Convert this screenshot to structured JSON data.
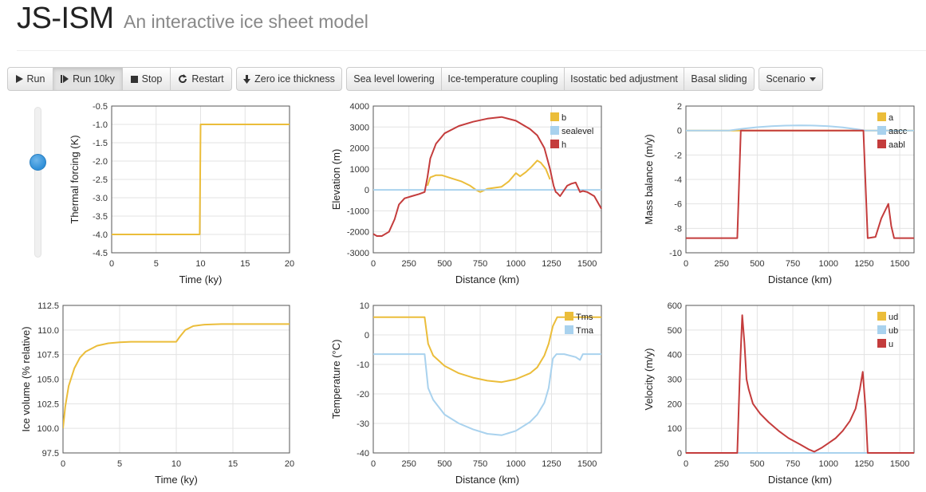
{
  "header": {
    "title": "JS-ISM",
    "subtitle": "An interactive ice sheet model"
  },
  "toolbar": {
    "run": "Run",
    "run10": "Run 10ky",
    "stop": "Stop",
    "restart": "Restart",
    "zero": "Zero ice thickness",
    "sealevel": "Sea level lowering",
    "icetemp": "Ice-temperature coupling",
    "isostatic": "Isostatic bed adjustment",
    "basal": "Basal sliding",
    "scenario": "Scenario"
  },
  "slider": {
    "level": 0.65
  },
  "colors": {
    "yellow": "#ebbd3a",
    "blue": "#a9d2ee",
    "red": "#c43c3c"
  },
  "chart_data": [
    {
      "type": "line",
      "id": "forcing",
      "xlabel": "Time (ky)",
      "ylabel": "Thermal forcing (K)",
      "xlim": [
        0,
        20
      ],
      "ylim": [
        -4.5,
        -0.5
      ],
      "xticks": [
        0,
        5,
        10,
        15,
        20
      ],
      "yticks": [
        -4.5,
        -4.0,
        -3.5,
        -3.0,
        -2.5,
        -2.0,
        -1.5,
        -1.0,
        -0.5
      ],
      "ytick_labels": [
        "-4.5",
        "-4.0",
        "-3.5",
        "-3.0",
        "-2.5",
        "-2.0",
        "-1.5",
        "-1.0",
        "-0.5"
      ],
      "series": [
        {
          "color": "yellow",
          "x": [
            0,
            9.9,
            10,
            20
          ],
          "y": [
            -4.0,
            -4.0,
            -1.0,
            -1.0
          ]
        }
      ]
    },
    {
      "type": "line",
      "id": "elevation",
      "xlabel": "Distance (km)",
      "ylabel": "Elevation (m)",
      "xlim": [
        0,
        1600
      ],
      "ylim": [
        -3000,
        4000
      ],
      "xticks": [
        0,
        250,
        500,
        750,
        1000,
        1250,
        1500
      ],
      "yticks": [
        -3000,
        -2000,
        -1000,
        0,
        1000,
        2000,
        3000,
        4000
      ],
      "legend": [
        "b",
        "sealevel",
        "h"
      ],
      "series": [
        {
          "name": "b",
          "color": "yellow",
          "x": [
            380,
            400,
            440,
            480,
            550,
            620,
            680,
            720,
            750,
            800,
            850,
            900,
            950,
            1000,
            1030,
            1070,
            1110,
            1150,
            1175,
            1210,
            1240
          ],
          "y": [
            200,
            600,
            700,
            700,
            550,
            400,
            200,
            0,
            -100,
            50,
            100,
            150,
            400,
            800,
            650,
            850,
            1100,
            1400,
            1300,
            1000,
            500
          ]
        },
        {
          "name": "sealevel",
          "color": "blue",
          "x": [
            0,
            1600
          ],
          "y": [
            0,
            0
          ]
        },
        {
          "name": "h",
          "color": "red",
          "x": [
            0,
            25,
            60,
            110,
            150,
            180,
            220,
            270,
            320,
            360,
            380,
            400,
            440,
            500,
            600,
            700,
            800,
            900,
            1000,
            1100,
            1150,
            1200,
            1240,
            1265,
            1280,
            1290,
            1310,
            1360,
            1390,
            1420,
            1450,
            1470,
            1500,
            1550,
            1600
          ],
          "y": [
            -2100,
            -2200,
            -2200,
            -2000,
            -1400,
            -700,
            -400,
            -300,
            -200,
            -100,
            600,
            1500,
            2200,
            2700,
            3050,
            3250,
            3400,
            3480,
            3300,
            2900,
            2600,
            2000,
            1000,
            200,
            -100,
            -150,
            -300,
            200,
            300,
            350,
            -100,
            -50,
            -100,
            -300,
            -900
          ]
        }
      ]
    },
    {
      "type": "line",
      "id": "massbalance",
      "xlabel": "Distance (km)",
      "ylabel": "Mass balance (m/y)",
      "xlim": [
        0,
        1600
      ],
      "ylim": [
        -10,
        2
      ],
      "xticks": [
        0,
        250,
        500,
        750,
        1000,
        1250,
        1500
      ],
      "yticks": [
        -10,
        -8,
        -6,
        -4,
        -2,
        0,
        2
      ],
      "legend": [
        "a",
        "aacc",
        "aabl"
      ],
      "series": [
        {
          "name": "a",
          "color": "yellow",
          "x": [
            0,
            1600
          ],
          "y": [
            0,
            0
          ]
        },
        {
          "name": "aacc",
          "color": "blue",
          "x": [
            0,
            300,
            400,
            500,
            600,
            700,
            800,
            900,
            1000,
            1100,
            1200,
            1260,
            1600
          ],
          "y": [
            0,
            0,
            0.15,
            0.27,
            0.35,
            0.4,
            0.42,
            0.4,
            0.35,
            0.25,
            0.1,
            0,
            0
          ]
        },
        {
          "name": "aabl",
          "color": "red",
          "x": [
            0,
            360,
            385,
            1245,
            1275,
            1330,
            1370,
            1420,
            1440,
            1460,
            1480,
            1600
          ],
          "y": [
            -8.8,
            -8.8,
            0,
            0,
            -8.8,
            -8.7,
            -7.2,
            -6.0,
            -7.8,
            -8.8,
            -8.8,
            -8.8
          ]
        }
      ]
    },
    {
      "type": "line",
      "id": "volume",
      "xlabel": "Time (ky)",
      "ylabel": "Ice volume (% relative)",
      "xlim": [
        0,
        20
      ],
      "ylim": [
        97.5,
        112.5
      ],
      "xticks": [
        0,
        5,
        10,
        15,
        20
      ],
      "yticks": [
        97.5,
        100,
        102.5,
        105,
        107.5,
        110,
        112.5
      ],
      "ytick_labels": [
        "97.5",
        "100.0",
        "102.5",
        "105.0",
        "107.5",
        "110.0",
        "112.5"
      ],
      "series": [
        {
          "color": "yellow",
          "x": [
            0,
            0.2,
            0.5,
            1,
            1.5,
            2,
            3,
            4,
            5,
            6,
            8,
            10,
            10.3,
            10.8,
            11.5,
            12.5,
            14,
            16,
            18,
            20
          ],
          "y": [
            100,
            102.2,
            104.3,
            106.1,
            107.2,
            107.8,
            108.4,
            108.65,
            108.75,
            108.8,
            108.8,
            108.8,
            109.3,
            110.0,
            110.4,
            110.55,
            110.6,
            110.6,
            110.6,
            110.6
          ]
        }
      ]
    },
    {
      "type": "line",
      "id": "temperature",
      "xlabel": "Distance (km)",
      "ylabel": "Temperature (°C)",
      "xlim": [
        0,
        1600
      ],
      "ylim": [
        -40,
        10
      ],
      "xticks": [
        0,
        250,
        500,
        750,
        1000,
        1250,
        1500
      ],
      "yticks": [
        -40,
        -30,
        -20,
        -10,
        0,
        10
      ],
      "legend": [
        "Tms",
        "Tma"
      ],
      "series": [
        {
          "name": "Tms",
          "color": "yellow",
          "x": [
            0,
            360,
            385,
            420,
            500,
            600,
            700,
            800,
            900,
            1000,
            1100,
            1150,
            1200,
            1230,
            1260,
            1290,
            1600
          ],
          "y": [
            6,
            6,
            -3,
            -7,
            -10.5,
            -13,
            -14.5,
            -15.5,
            -16,
            -15,
            -13,
            -11,
            -7,
            -3,
            3,
            6,
            6
          ]
        },
        {
          "name": "Tma",
          "color": "blue",
          "x": [
            0,
            360,
            385,
            420,
            500,
            600,
            700,
            800,
            900,
            1000,
            1100,
            1150,
            1200,
            1230,
            1260,
            1285,
            1340,
            1420,
            1450,
            1470,
            1500,
            1600
          ],
          "y": [
            -6.5,
            -6.5,
            -18,
            -22,
            -27,
            -30,
            -32,
            -33.5,
            -34,
            -32.5,
            -29.5,
            -27,
            -23,
            -18,
            -8,
            -6.5,
            -6.5,
            -7.5,
            -8.5,
            -6.5,
            -6.5,
            -6.5
          ]
        }
      ]
    },
    {
      "type": "line",
      "id": "velocity",
      "xlabel": "Distance (km)",
      "ylabel": "Velocity (m/y)",
      "xlim": [
        0,
        1600
      ],
      "ylim": [
        0,
        600
      ],
      "xticks": [
        0,
        250,
        500,
        750,
        1000,
        1250,
        1500
      ],
      "yticks": [
        0,
        100,
        200,
        300,
        400,
        500,
        600
      ],
      "legend": [
        "ud",
        "ub",
        "u"
      ],
      "series": [
        {
          "name": "ud",
          "color": "yellow",
          "x": [
            0,
            1600
          ],
          "y": [
            0,
            0
          ]
        },
        {
          "name": "ub",
          "color": "blue",
          "x": [
            0,
            1600
          ],
          "y": [
            0,
            0
          ]
        },
        {
          "name": "u",
          "color": "red",
          "x": [
            0,
            360,
            380,
            395,
            410,
            425,
            440,
            470,
            520,
            580,
            650,
            720,
            800,
            860,
            900,
            950,
            1000,
            1050,
            1100,
            1150,
            1190,
            1220,
            1240,
            1260,
            1275,
            1600
          ],
          "y": [
            0,
            0,
            350,
            560,
            450,
            300,
            260,
            200,
            160,
            125,
            90,
            60,
            35,
            15,
            5,
            20,
            40,
            60,
            90,
            130,
            180,
            260,
            330,
            180,
            0,
            0
          ]
        }
      ]
    }
  ]
}
